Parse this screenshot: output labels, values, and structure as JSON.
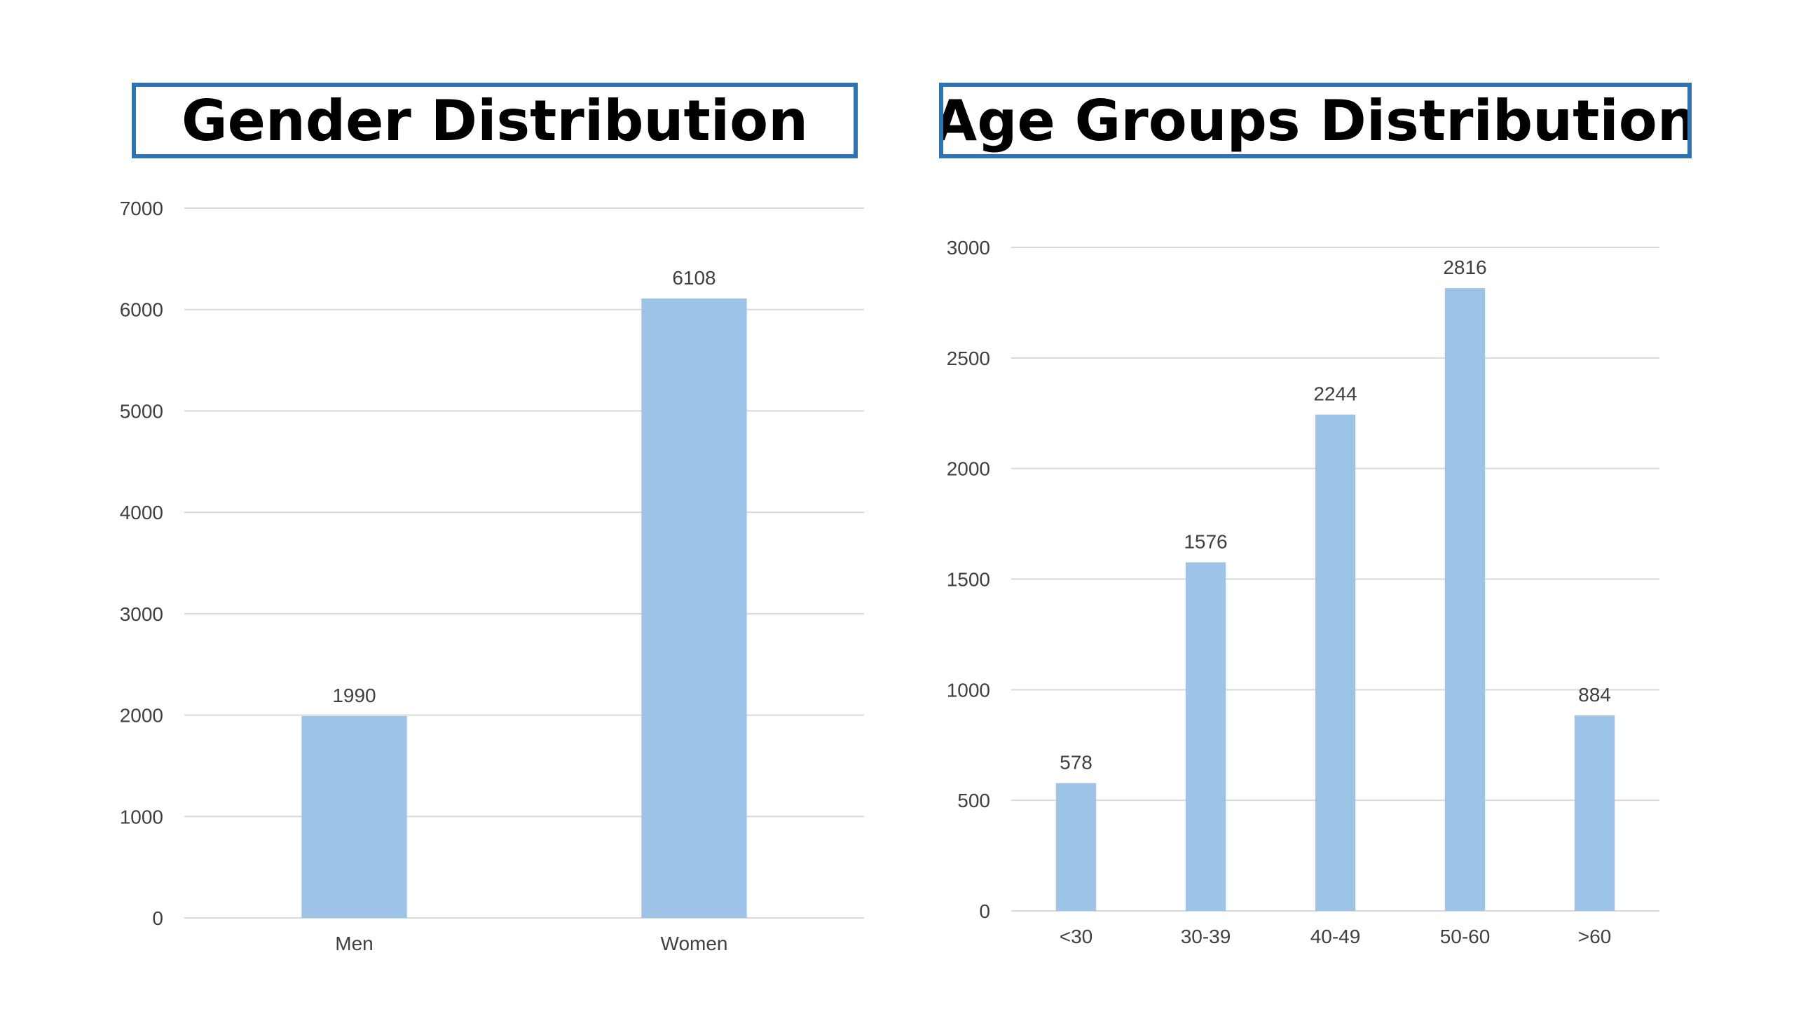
{
  "colors": {
    "bar": "#9dc3e6",
    "grid": "#d9d9d9",
    "title_border": "#2e74b5",
    "text": "#404040"
  },
  "chart_data": [
    {
      "type": "bar",
      "title": "Gender Distribution",
      "categories": [
        "Men",
        "Women"
      ],
      "values": [
        1990,
        6108
      ],
      "ylim": [
        0,
        7000
      ],
      "yticks": [
        0,
        1000,
        2000,
        3000,
        4000,
        5000,
        6000,
        7000
      ],
      "grid": true,
      "data_labels": true
    },
    {
      "type": "bar",
      "title": "Age Groups Distribution",
      "categories": [
        "<30",
        "30-39",
        "40-49",
        "50-60",
        ">60"
      ],
      "values": [
        578,
        1576,
        2244,
        2816,
        884
      ],
      "ylim": [
        0,
        3000
      ],
      "yticks": [
        0,
        500,
        1000,
        1500,
        2000,
        2500,
        3000
      ],
      "grid": true,
      "data_labels": true
    }
  ]
}
